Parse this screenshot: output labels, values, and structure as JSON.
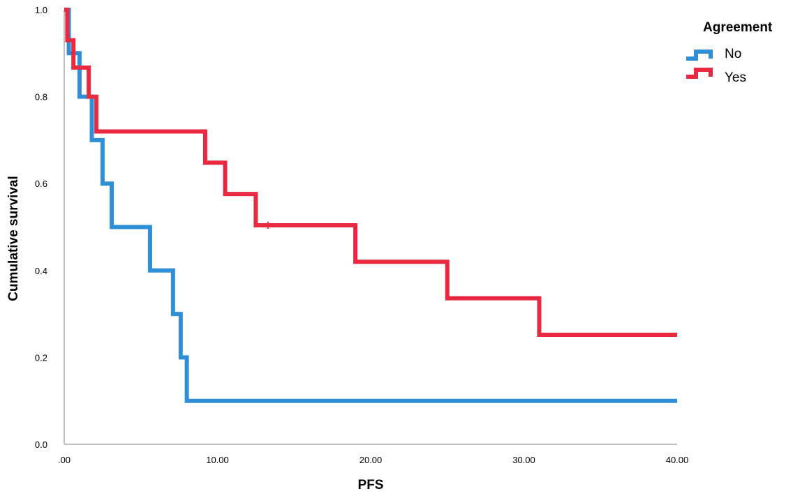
{
  "chart_data": {
    "type": "line",
    "subtype": "kaplan-meier step curve",
    "xlabel": "PFS",
    "ylabel": "Cumulative survival",
    "xlim": [
      0,
      40
    ],
    "ylim": [
      0,
      1
    ],
    "x_ticks": [
      0,
      10,
      20,
      30,
      40
    ],
    "x_tick_labels": [
      ".00",
      "10.00",
      "20.00",
      "30.00",
      "40.00"
    ],
    "y_ticks": [
      0,
      0.2,
      0.4,
      0.6,
      0.8,
      1.0
    ],
    "y_tick_labels": [
      "0.0",
      "0.2",
      "0.4",
      "0.6",
      "0.8",
      "1.0"
    ],
    "grid": false,
    "legend": {
      "title": "Agreement",
      "position": "top-right"
    },
    "series": [
      {
        "name": "No",
        "color": "#2f8fd6",
        "steps": [
          [
            0,
            1.0
          ],
          [
            0.3,
            0.9
          ],
          [
            1.0,
            0.8
          ],
          [
            1.8,
            0.7
          ],
          [
            2.5,
            0.6
          ],
          [
            3.1,
            0.5
          ],
          [
            5.6,
            0.4
          ],
          [
            7.1,
            0.3
          ],
          [
            7.6,
            0.2
          ],
          [
            8.0,
            0.1
          ],
          [
            40,
            0.1
          ]
        ]
      },
      {
        "name": "Yes",
        "color": "#e8293f",
        "steps": [
          [
            0,
            1.0
          ],
          [
            0.2,
            0.93
          ],
          [
            0.6,
            0.867
          ],
          [
            1.6,
            0.8
          ],
          [
            2.1,
            0.72
          ],
          [
            9.2,
            0.648
          ],
          [
            10.5,
            0.576
          ],
          [
            12.5,
            0.504
          ],
          [
            19.0,
            0.42
          ],
          [
            25.0,
            0.336
          ],
          [
            31.0,
            0.252
          ],
          [
            40,
            0.252
          ]
        ],
        "censored": [
          [
            13.3,
            0.504
          ]
        ]
      }
    ]
  }
}
